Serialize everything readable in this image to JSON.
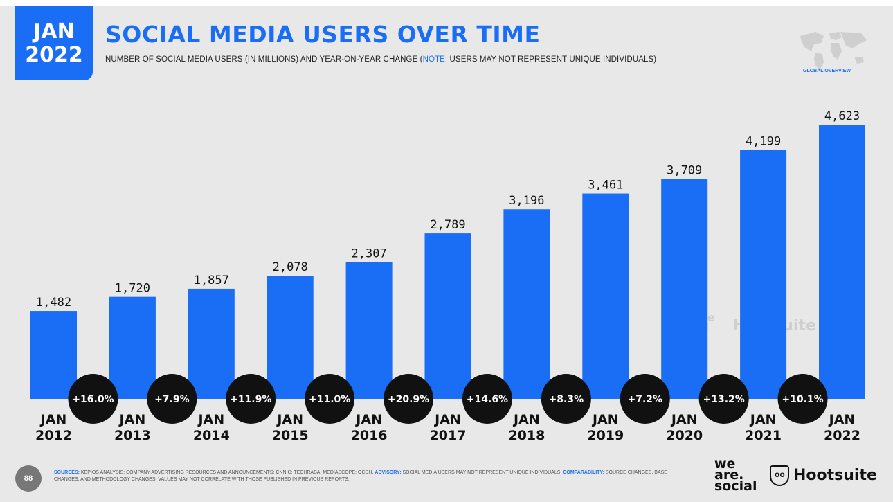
{
  "header": {
    "date_month": "JAN",
    "date_year": "2022",
    "title": "SOCIAL MEDIA USERS OVER TIME",
    "subtitle_main": "NUMBER OF SOCIAL MEDIA USERS (IN MILLIONS) AND YEAR-ON-YEAR CHANGE (",
    "subtitle_note_label": "NOTE:",
    "subtitle_note": " USERS MAY NOT REPRESENT UNIQUE INDIVIDUALS)",
    "globe_label": "GLOBAL OVERVIEW"
  },
  "colors": {
    "accent": "#1a6ef5",
    "bubble": "#111111",
    "background": "#e8e8e8"
  },
  "chart_data": {
    "type": "bar",
    "categories": [
      "JAN 2012",
      "JAN 2013",
      "JAN 2014",
      "JAN 2015",
      "JAN 2016",
      "JAN 2017",
      "JAN 2018",
      "JAN 2019",
      "JAN 2020",
      "JAN 2021",
      "JAN 2022"
    ],
    "category_lines": [
      [
        "JAN",
        "2012"
      ],
      [
        "JAN",
        "2013"
      ],
      [
        "JAN",
        "2014"
      ],
      [
        "JAN",
        "2015"
      ],
      [
        "JAN",
        "2016"
      ],
      [
        "JAN",
        "2017"
      ],
      [
        "JAN",
        "2018"
      ],
      [
        "JAN",
        "2019"
      ],
      [
        "JAN",
        "2020"
      ],
      [
        "JAN",
        "2021"
      ],
      [
        "JAN",
        "2022"
      ]
    ],
    "values": [
      1482,
      1720,
      1857,
      2078,
      2307,
      2789,
      3196,
      3461,
      3709,
      4199,
      4623
    ],
    "value_labels": [
      "1,482",
      "1,720",
      "1,857",
      "2,078",
      "2,307",
      "2,789",
      "3,196",
      "3,461",
      "3,709",
      "4,199",
      "4,623"
    ],
    "yoy_change": [
      "+16.0%",
      "+7.9%",
      "+11.9%",
      "+11.0%",
      "+20.9%",
      "+14.6%",
      "+8.3%",
      "+7.2%",
      "+13.2%",
      "+10.1%"
    ],
    "ylim": [
      0,
      4623
    ],
    "grid": false,
    "legend": "none"
  },
  "watermarks": {
    "weare": "we are social",
    "hootsuite": "Hootsuite"
  },
  "footer": {
    "page_number": "88",
    "sources_label": "SOURCES:",
    "sources_text": " KEPIOS ANALYSIS; COMPANY ADVERTISING RESOURCES AND ANNOUNCEMENTS; CNNIC; TECHRASA; MEDIASCOPE; OCDH. ",
    "advisory_label": "ADVISORY:",
    "advisory_text": " SOCIAL MEDIA USERS MAY NOT REPRESENT UNIQUE INDIVIDUALS. ",
    "comparability_label": "COMPARABILITY:",
    "comparability_text": " SOURCE CHANGES, BASE CHANGES, AND METHODOLOGY CHANGES. VALUES MAY NOT CORRELATE WITH THOSE PUBLISHED IN PREVIOUS REPORTS.",
    "brand_weare_1": "we",
    "brand_weare_2": "are.",
    "brand_weare_3": "social",
    "brand_hootsuite": "Hootsuite"
  }
}
